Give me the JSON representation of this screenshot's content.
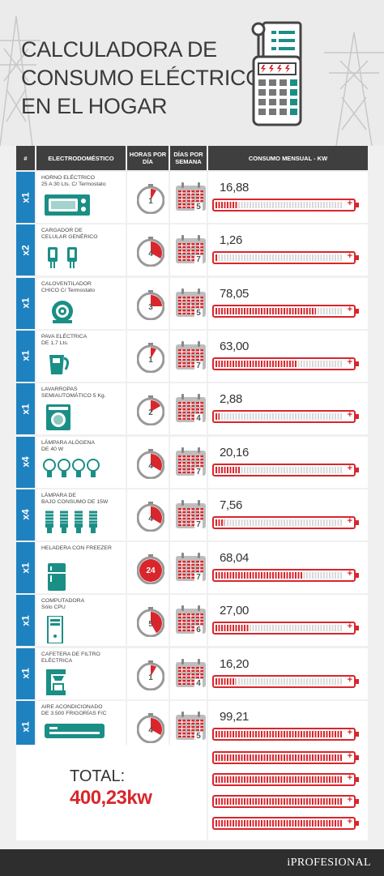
{
  "title": {
    "line1": "CALCULADORA DE",
    "line2": "CONSUMO ELÉCTRICO",
    "line3": "EN EL HOGAR"
  },
  "headers": {
    "qty": "#",
    "appliance": "ELECTRODOMÉSTICO",
    "hours": "HORAS POR DÍA",
    "days": "DÍAS POR SEMANA",
    "consumption": "CONSUMO MENSUAL - KW"
  },
  "rows": [
    {
      "qty": "x1",
      "name1": "HORNO ELÉCTRICO",
      "name2": "25 A 30 Lts. C/ Termostato",
      "icon": "oven-icon",
      "hours": "1",
      "days": "5",
      "consumption": "16,88",
      "level": 0.17
    },
    {
      "qty": "x2",
      "name1": "CARGADOR DE",
      "name2": "CELULAR GENÉRICO",
      "icon": "phone-charger-icon",
      "hours": "4",
      "days": "7",
      "consumption": "1,26",
      "level": 0.01
    },
    {
      "qty": "x1",
      "name1": "CALOVENTILADOR",
      "name2": "CHICO C/ Termostato",
      "icon": "heater-fan-icon",
      "hours": "3",
      "days": "5",
      "consumption": "78,05",
      "level": 0.79
    },
    {
      "qty": "x1",
      "name1": "PAVA ELÉCTRICA",
      "name2": "DE 1,7 Lts.",
      "icon": "electric-kettle-icon",
      "hours": "1",
      "days": "7",
      "consumption": "63,00",
      "level": 0.64
    },
    {
      "qty": "x1",
      "name1": "LAVARROPAS",
      "name2": "SEMIAUTOMÁTICO 5 Kg.",
      "icon": "washing-machine-icon",
      "hours": "2",
      "days": "4",
      "consumption": "2,88",
      "level": 0.03
    },
    {
      "qty": "x4",
      "name1": "LÁMPARA ALÓGENA",
      "name2": "DE 40 W",
      "icon": "halogen-bulb-icon",
      "hours": "4",
      "days": "7",
      "consumption": "20,16",
      "level": 0.2
    },
    {
      "qty": "x4",
      "name1": "LÁMPARA DE",
      "name2": "BAJO CONSUMO DE 15W",
      "icon": "energy-saving-bulb-icon",
      "hours": "4",
      "days": "7",
      "consumption": "7,56",
      "level": 0.07
    },
    {
      "qty": "x1",
      "name1": "HELADERA CON FREEZER",
      "name2": "",
      "icon": "refrigerator-icon",
      "hours": "24",
      "days": "7",
      "consumption": "68,04",
      "level": 0.69
    },
    {
      "qty": "x1",
      "name1": "COMPUTADORA",
      "name2": "Sólo CPU",
      "icon": "computer-cpu-icon",
      "hours": "5",
      "days": "6",
      "consumption": "27,00",
      "level": 0.27
    },
    {
      "qty": "x1",
      "name1": "CAFETERA DE FILTRO",
      "name2": "ELÉCTRICA",
      "icon": "coffee-maker-icon",
      "hours": "1",
      "days": "4",
      "consumption": "16,20",
      "level": 0.16
    },
    {
      "qty": "x1",
      "name1": "AIRE ACONDICIONADO",
      "name2": "DE 3.500 FRIGORÍAS F/C",
      "icon": "air-conditioner-icon",
      "hours": "4",
      "days": "5",
      "consumption": "99,21",
      "level": 1.0
    }
  ],
  "total": {
    "label": "TOTAL:",
    "value": "400,23kw",
    "batteries": 4
  },
  "footer": {
    "brand": "iPROFESIONAL"
  },
  "colors": {
    "accent": "#d9262c",
    "qty_bg": "#1e82c0",
    "header_bg": "#3f3f3f",
    "icon_green": "#1a8f86"
  }
}
